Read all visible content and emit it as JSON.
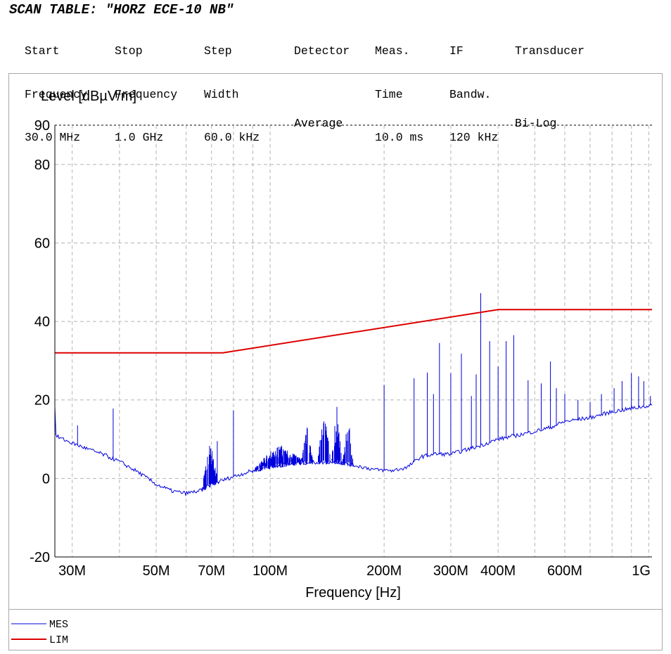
{
  "scan": {
    "title": "SCAN TABLE: \"HORZ ECE-10 NB\"",
    "columns": [
      {
        "l1": "Start",
        "l2": "Frequency",
        "l3": "30.0 MHz"
      },
      {
        "l1": "Stop",
        "l2": "Frequency",
        "l3": "1.0 GHz"
      },
      {
        "l1": "Step",
        "l2": "Width",
        "l3": "60.0 kHz"
      },
      {
        "l1": "Detector",
        "l2": "",
        "l3": "Average"
      },
      {
        "l1": "Meas.",
        "l2": "Time",
        "l3": "10.0 ms"
      },
      {
        "l1": "IF",
        "l2": "Bandw.",
        "l3": "120 kHz"
      },
      {
        "l1": "Transducer",
        "l2": "",
        "l3": "Bi-Log"
      }
    ]
  },
  "chart_data": {
    "type": "line",
    "ylabel": "Level [dBµV/m]",
    "xlabel": "Frequency [Hz]",
    "x_scale": "log",
    "xlim": [
      27000000,
      1020000000
    ],
    "ylim": [
      -20,
      90
    ],
    "yticks": [
      -20,
      0,
      20,
      40,
      60,
      80,
      90
    ],
    "xticks": [
      {
        "v": 30000000,
        "label": "30M"
      },
      {
        "v": 50000000,
        "label": "50M"
      },
      {
        "v": 70000000,
        "label": "70M"
      },
      {
        "v": 100000000,
        "label": "100M"
      },
      {
        "v": 200000000,
        "label": "200M"
      },
      {
        "v": 300000000,
        "label": "300M"
      },
      {
        "v": 400000000,
        "label": "400M"
      },
      {
        "v": 600000000,
        "label": "600M"
      },
      {
        "v": 1000000000,
        "label": "1G"
      }
    ],
    "grid": true,
    "legend_position": "bottom-left",
    "series": [
      {
        "name": "MES",
        "color": "#0000dd",
        "kind": "measurement",
        "baseline": [
          [
            27000000,
            11
          ],
          [
            28000000,
            10.2
          ],
          [
            30000000,
            9
          ],
          [
            33000000,
            7.5
          ],
          [
            36000000,
            6.2
          ],
          [
            40000000,
            4.3
          ],
          [
            45000000,
            1.5
          ],
          [
            50000000,
            -1.5
          ],
          [
            55000000,
            -3.2
          ],
          [
            60000000,
            -3.8
          ],
          [
            65000000,
            -3.2
          ],
          [
            70000000,
            -1.5
          ],
          [
            80000000,
            0.5
          ],
          [
            90000000,
            2
          ],
          [
            100000000,
            3
          ],
          [
            120000000,
            4
          ],
          [
            150000000,
            4.2
          ],
          [
            170000000,
            3.2
          ],
          [
            190000000,
            2.2
          ],
          [
            210000000,
            2
          ],
          [
            230000000,
            2.8
          ],
          [
            250000000,
            5.5
          ],
          [
            270000000,
            6.2
          ],
          [
            300000000,
            6.2
          ],
          [
            350000000,
            8
          ],
          [
            400000000,
            10
          ],
          [
            450000000,
            11
          ],
          [
            500000000,
            12
          ],
          [
            550000000,
            13
          ],
          [
            600000000,
            14.5
          ],
          [
            700000000,
            15.5
          ],
          [
            800000000,
            17
          ],
          [
            900000000,
            17.8
          ],
          [
            1020000000,
            18.7
          ]
        ],
        "clusters": [
          {
            "from": 66000000,
            "to": 73000000,
            "peak": 10
          },
          {
            "from": 90000000,
            "to": 125000000,
            "peak": 9
          },
          {
            "from": 120000000,
            "to": 130000000,
            "peak": 14
          },
          {
            "from": 133000000,
            "to": 145000000,
            "peak": 18.5
          },
          {
            "from": 145000000,
            "to": 155000000,
            "peak": 19
          },
          {
            "from": 155000000,
            "to": 166000000,
            "peak": 17
          }
        ],
        "spikes": [
          [
            31000000,
            13.5
          ],
          [
            38500000,
            17.8
          ],
          [
            72500000,
            9.5
          ],
          [
            80000000,
            17.3
          ],
          [
            200000000,
            23.8
          ],
          [
            240000000,
            25.5
          ],
          [
            260000000,
            27
          ],
          [
            270000000,
            21.5
          ],
          [
            280000000,
            34.5
          ],
          [
            300000000,
            26.8
          ],
          [
            320000000,
            31.8
          ],
          [
            340000000,
            21
          ],
          [
            350000000,
            26.5
          ],
          [
            360000000,
            47.2
          ],
          [
            380000000,
            35
          ],
          [
            400000000,
            28.5
          ],
          [
            420000000,
            35
          ],
          [
            440000000,
            36.5
          ],
          [
            480000000,
            25
          ],
          [
            520000000,
            24.2
          ],
          [
            550000000,
            29.8
          ],
          [
            570000000,
            23
          ],
          [
            600000000,
            21.5
          ],
          [
            650000000,
            20
          ],
          [
            700000000,
            19.5
          ],
          [
            750000000,
            21.5
          ],
          [
            810000000,
            23
          ],
          [
            850000000,
            24.8
          ],
          [
            900000000,
            26.8
          ],
          [
            940000000,
            26
          ],
          [
            970000000,
            24.8
          ],
          [
            1010000000,
            21
          ]
        ]
      },
      {
        "name": "LIM",
        "color": "#dd0000",
        "kind": "limit",
        "points": [
          [
            27000000,
            32
          ],
          [
            75000000,
            32
          ],
          [
            400000000,
            43
          ],
          [
            1020000000,
            43
          ]
        ]
      }
    ]
  }
}
